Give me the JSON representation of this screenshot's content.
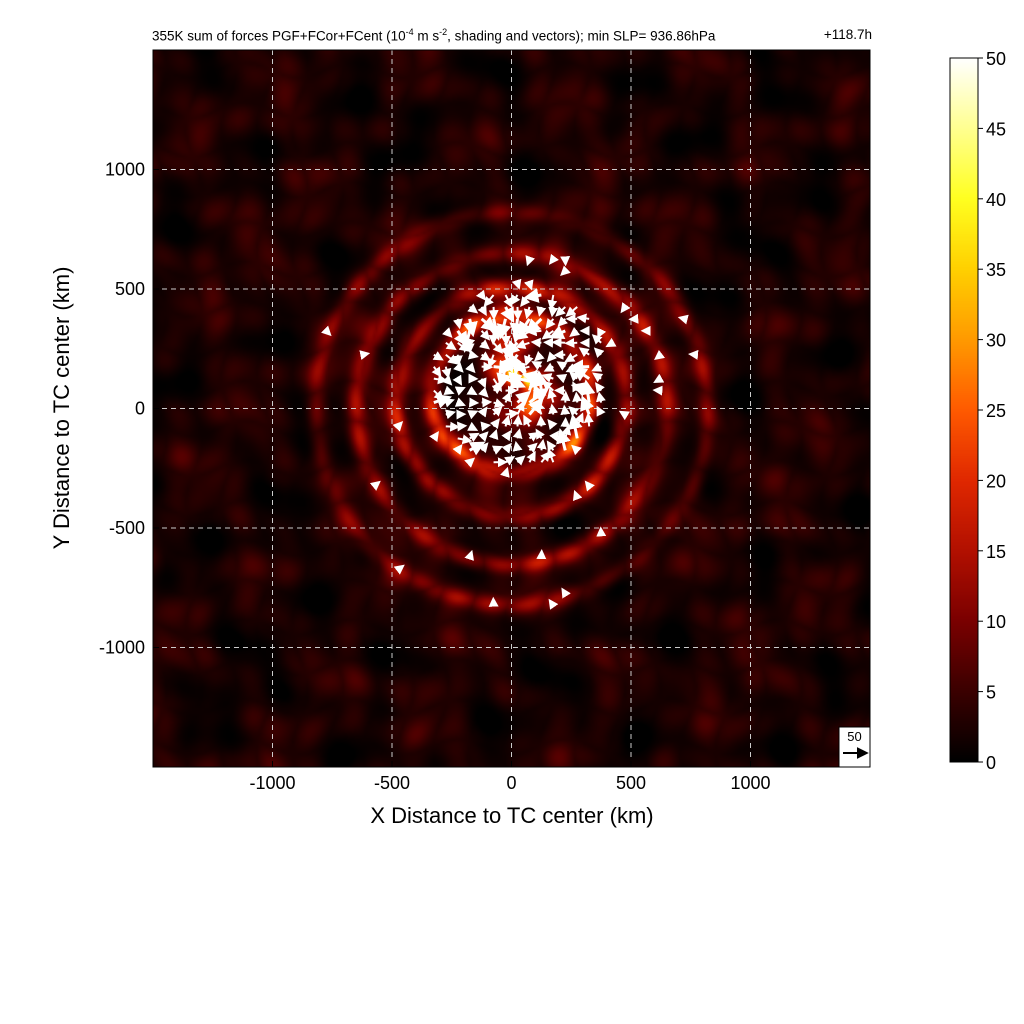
{
  "chart_data": {
    "type": "heatmap",
    "title_prefix": "355K sum of forces PGF+FCor+FCent (10",
    "title_exp1": "-4",
    "title_mid": " m s",
    "title_exp2": "-2",
    "title_suffix": ", shading and vectors); min SLP= 936.86hPa",
    "title_time": "+118.7h",
    "xlabel": "X Distance to TC center (km)",
    "ylabel": "Y Distance to TC center (km)",
    "xlim": [
      -1500,
      1500
    ],
    "ylim": [
      -1500,
      1500
    ],
    "xticks": [
      -1000,
      -500,
      0,
      500,
      1000
    ],
    "yticks": [
      -1000,
      -500,
      0,
      500,
      1000
    ],
    "xtick_labels": [
      "-1000",
      "-500",
      "0",
      "500",
      "1000"
    ],
    "ytick_labels": [
      "-1000",
      "-500",
      "0",
      "500",
      "1000"
    ],
    "grid": true,
    "colorbar": {
      "min": 0,
      "max": 50,
      "ticks": [
        0,
        5,
        10,
        15,
        20,
        25,
        30,
        35,
        40,
        45,
        50
      ],
      "tick_labels": [
        "0",
        "5",
        "10",
        "15",
        "20",
        "25",
        "30",
        "35",
        "40",
        "45",
        "50"
      ],
      "colormap": [
        "#000000",
        "#3a0000",
        "#7a0000",
        "#b21000",
        "#e02800",
        "#ff5a00",
        "#ff9a00",
        "#ffd000",
        "#ffff20",
        "#ffff90",
        "#ffffff"
      ]
    },
    "reference_vector_label": "50",
    "field_features": [
      {
        "kind": "core",
        "center": [
          40,
          130
        ],
        "radius": 190,
        "peak": 50
      },
      {
        "kind": "ring",
        "center": [
          0,
          60
        ],
        "radius": 330,
        "peak": 22
      },
      {
        "kind": "ring",
        "center": [
          0,
          30
        ],
        "radius": 480,
        "peak": 14
      },
      {
        "kind": "ring",
        "center": [
          0,
          0
        ],
        "radius": 650,
        "peak": 11
      },
      {
        "kind": "ring",
        "center": [
          0,
          0
        ],
        "radius": 820,
        "peak": 8
      }
    ]
  },
  "colors": {
    "background": "#ffffff",
    "vector": "#ffffff",
    "grid": "#cccccc",
    "axis": "#000000"
  }
}
